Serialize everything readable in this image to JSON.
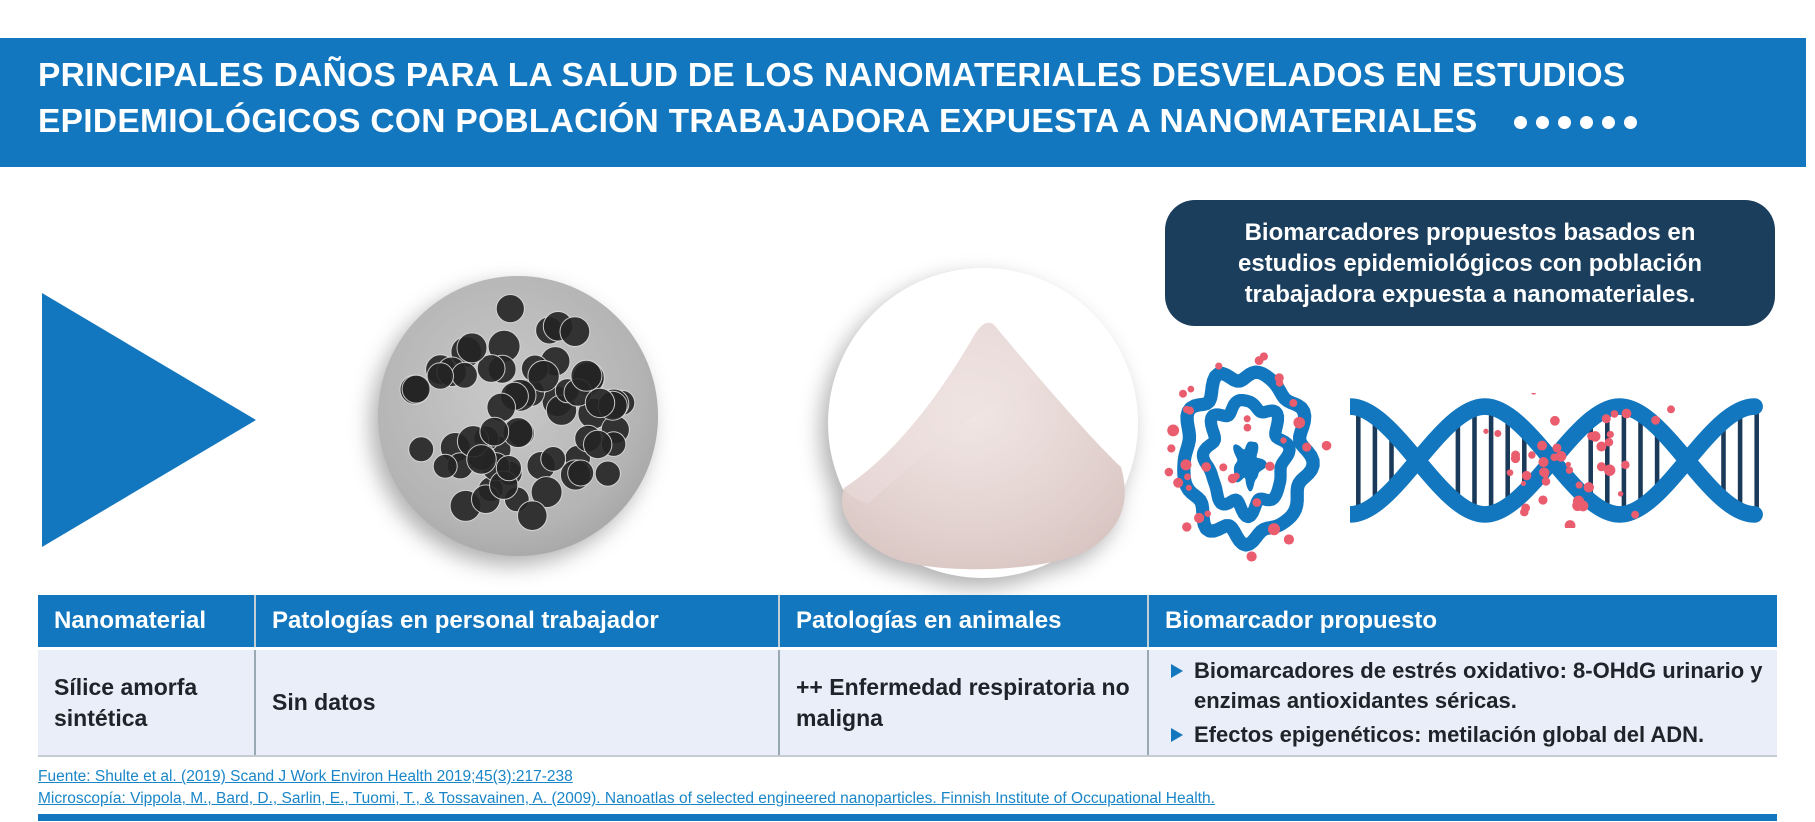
{
  "header": {
    "title_line1": "PRINCIPALES DAÑOS PARA LA SALUD DE LOS NANOMATERIALES DESVELADOS EN ESTUDIOS",
    "title_line2": "EPIDEMIOLÓGICOS CON POBLACIÓN TRABAJADORA EXPUESTA A NANOMATERIALES",
    "dots_count": 6
  },
  "callout": {
    "text": "Biomarcadores propuestos basados en estudios epidemiológicos con población trabajadora expuesta a nanomateriales."
  },
  "illustrations": {
    "arrow_icon": "right-pointing-triangle-icon",
    "tem_image": "tem-micrograph-nanoparticles-image",
    "powder_image": "silica-powder-pile-image",
    "cell_icon": "cell-with-nanoparticles-icon",
    "dna_icon": "dna-double-helix-icon"
  },
  "table": {
    "columns": [
      "Nanomaterial",
      "Patologías en personal trabajador",
      "Patologías en animales",
      "Biomarcador propuesto"
    ],
    "rows": [
      {
        "nanomaterial": "Sílice amorfa sintética",
        "patologias_personal": "Sin datos",
        "patologias_animales": "++ Enfermedad respiratoria no maligna",
        "biomarcadores": [
          "Biomarcadores de estrés oxidativo: 8-OHdG urinario y enzimas antioxidantes séricas.",
          "Efectos epigenéticos: metilación global del ADN."
        ]
      }
    ]
  },
  "footer": {
    "source_link": "Fuente: Shulte et al. (2019) Scand J Work Environ Health 2019;45(3):217-238",
    "microscopy_link": "Microscopía: Vippola, M., Bard, D., Sarlin, E., Tuomi, T., & Tossavainen, A. (2009). Nanoatlas of selected engineered nanoparticles. Finnish Institute of Occupational Health."
  },
  "colors": {
    "primary_blue": "#1277be",
    "dark_navy": "#1b3e5d",
    "row_background": "#e9eef8",
    "link_blue": "#1a86c8",
    "dot_red": "#ea5d6e",
    "dna_rung_navy": "#1b3a5a",
    "body_text": "#20242a"
  }
}
